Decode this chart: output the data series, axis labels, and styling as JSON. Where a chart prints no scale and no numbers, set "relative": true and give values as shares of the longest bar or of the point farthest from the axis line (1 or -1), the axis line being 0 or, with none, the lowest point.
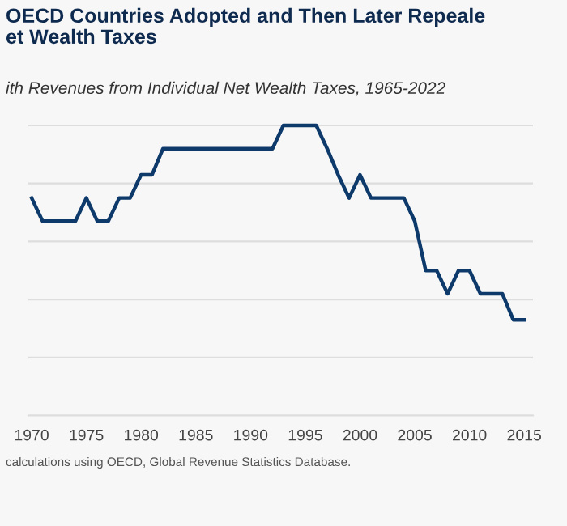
{
  "chart_data": {
    "type": "line",
    "title": "OECD Countries Adopted and Then Later Repeale\net Wealth Taxes",
    "subtitle": "ith Revenues from Individual Net Wealth Taxes, 1965-2022",
    "annotations": [
      "calculations using OECD, Global Revenue Statistics Database."
    ],
    "relative": true,
    "x": [
      1970,
      1971,
      1972,
      1973,
      1974,
      1975,
      1976,
      1977,
      1978,
      1979,
      1980,
      1981,
      1982,
      1983,
      1984,
      1985,
      1986,
      1987,
      1988,
      1989,
      1990,
      1991,
      1992,
      1993,
      1994,
      1995,
      1996,
      1997,
      1998,
      1999,
      2000,
      2001,
      2002,
      2003,
      2004,
      2005,
      2006,
      2007,
      2008,
      2009,
      2010,
      2011,
      2012,
      2013,
      2014,
      2015
    ],
    "series": [
      {
        "color": "#0e3a6b",
        "values": [
          0.75,
          0.67,
          0.67,
          0.67,
          0.67,
          0.75,
          0.67,
          0.67,
          0.75,
          0.75,
          0.83,
          0.83,
          0.92,
          0.92,
          0.92,
          0.92,
          0.92,
          0.92,
          0.92,
          0.92,
          0.92,
          0.92,
          0.92,
          1,
          1,
          1,
          1,
          0.92,
          0.83,
          0.75,
          0.83,
          0.75,
          0.75,
          0.75,
          0.75,
          0.67,
          0.5,
          0.5,
          0.42,
          0.5,
          0.5,
          0.42,
          0.42,
          0.42,
          0.33,
          0.33
        ]
      }
    ],
    "xlim": [
      1969.7,
      2015.8
    ],
    "xticks": [
      1970,
      1975,
      1980,
      1985,
      1990,
      1995,
      2000,
      2005,
      2010,
      2015
    ],
    "grid": "y",
    "legend": false,
    "marker": "none",
    "line_style": "solid"
  }
}
